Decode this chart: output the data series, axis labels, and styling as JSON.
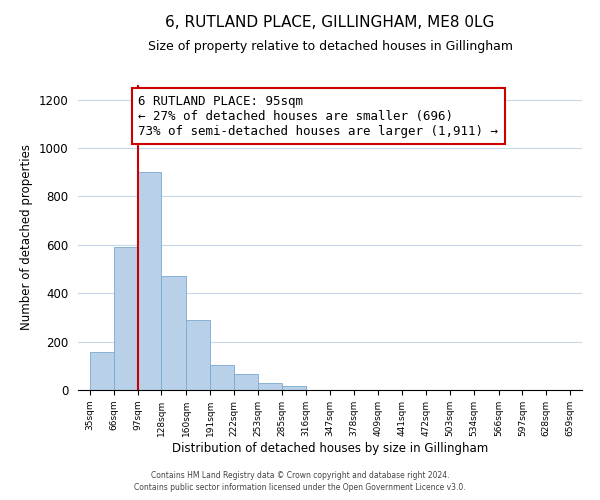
{
  "title": "6, RUTLAND PLACE, GILLINGHAM, ME8 0LG",
  "subtitle": "Size of property relative to detached houses in Gillingham",
  "xlabel": "Distribution of detached houses by size in Gillingham",
  "ylabel": "Number of detached properties",
  "bar_edges": [
    35,
    66,
    97,
    128,
    160,
    191,
    222,
    253,
    285,
    316,
    347,
    378,
    409,
    441,
    472,
    503,
    534,
    566,
    597,
    628,
    659
  ],
  "bar_heights": [
    155,
    590,
    900,
    470,
    290,
    105,
    65,
    28,
    15,
    0,
    0,
    0,
    0,
    0,
    0,
    0,
    0,
    0,
    0,
    0
  ],
  "bar_color": "#b8d0e8",
  "bar_edgecolor": "#7aaad0",
  "vline_color": "#cc0000",
  "vline_x": 97,
  "annotation_line1": "6 RUTLAND PLACE: 95sqm",
  "annotation_line2": "← 27% of detached houses are smaller (696)",
  "annotation_line3": "73% of semi-detached houses are larger (1,911) →",
  "annotation_box_edgecolor": "#cc0000",
  "annotation_box_facecolor": "#ffffff",
  "ylim": [
    0,
    1260
  ],
  "yticks": [
    0,
    200,
    400,
    600,
    800,
    1000,
    1200
  ],
  "tick_labels": [
    "35sqm",
    "66sqm",
    "97sqm",
    "128sqm",
    "160sqm",
    "191sqm",
    "222sqm",
    "253sqm",
    "285sqm",
    "316sqm",
    "347sqm",
    "378sqm",
    "409sqm",
    "441sqm",
    "472sqm",
    "503sqm",
    "534sqm",
    "566sqm",
    "597sqm",
    "628sqm",
    "659sqm"
  ],
  "footnote1": "Contains HM Land Registry data © Crown copyright and database right 2024.",
  "footnote2": "Contains public sector information licensed under the Open Government Licence v3.0.",
  "background_color": "#ffffff",
  "grid_color": "#c8d8e8",
  "title_fontsize": 11,
  "subtitle_fontsize": 9,
  "annotation_fontsize": 9
}
